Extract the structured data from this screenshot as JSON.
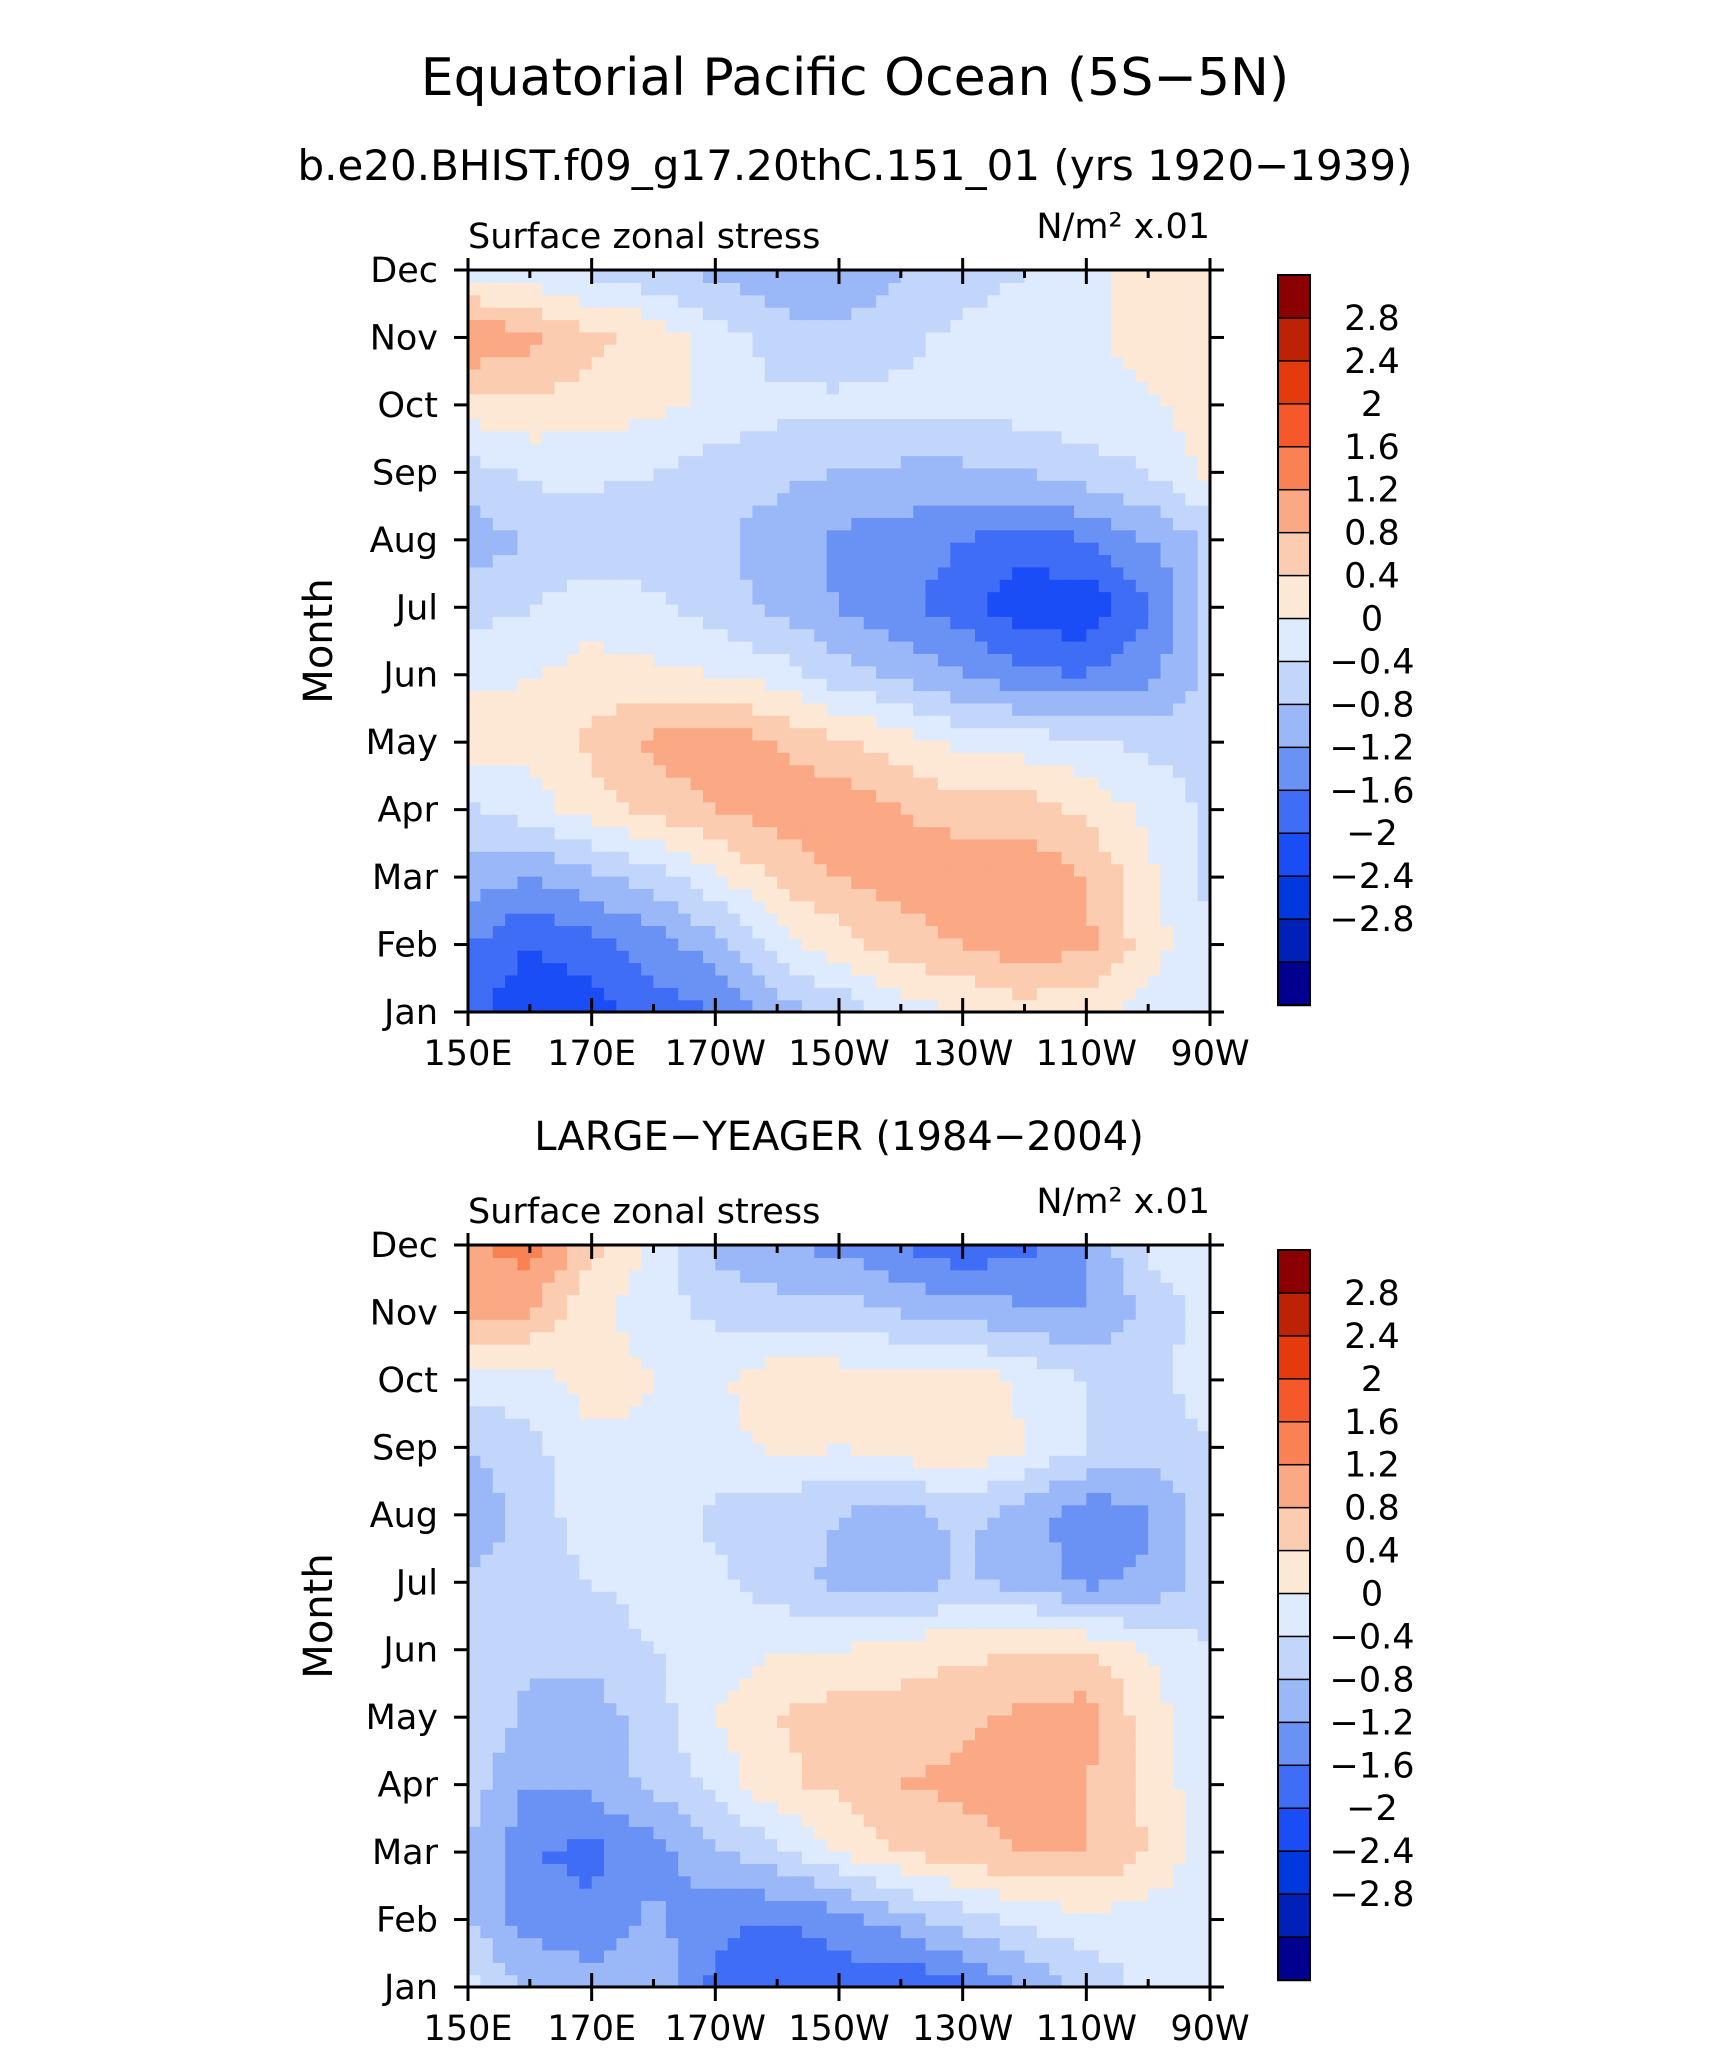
{
  "figure": {
    "title": "Equatorial Pacific Ocean (5S−5N)",
    "subtitle": "b.e20.BHIST.f09_g17.20thC.151_01 (yrs 1920−1939)"
  },
  "palette": {
    "levels": [
      -3.2,
      -2.8,
      -2.4,
      -2,
      -1.6,
      -1.2,
      -0.8,
      -0.4,
      0,
      0.4,
      0.8,
      1.2,
      1.6,
      2,
      2.4,
      2.8,
      3.2
    ],
    "colors": [
      "#02008f",
      "#0020b8",
      "#0038e0",
      "#1a4df5",
      "#3f6df5",
      "#6a92f5",
      "#9ab8f8",
      "#c2d6fb",
      "#deeafd",
      "#fde8d6",
      "#fcccb1",
      "#fba884",
      "#f98153",
      "#f5582b",
      "#e53a0e",
      "#bd2206",
      "#8b0000"
    ]
  },
  "chart_data": [
    {
      "type": "heatmap",
      "title": "",
      "left_label": "Surface zonal stress",
      "right_label": "N/m² x.01",
      "ylabel": "Month",
      "x_ticks": [
        "150E",
        "170E",
        "170W",
        "150W",
        "130W",
        "110W",
        "90W"
      ],
      "y_ticks": [
        "Jan",
        "Feb",
        "Mar",
        "Apr",
        "May",
        "Jun",
        "Jul",
        "Aug",
        "Sep",
        "Oct",
        "Nov",
        "Dec"
      ],
      "colorbar_labels": [
        "2.8",
        "2.4",
        "2",
        "1.6",
        "1.2",
        "0.8",
        "0.4",
        "0",
        "−0.4",
        "−0.8",
        "−1.2",
        "−1.6",
        "−2",
        "−2.4",
        "−2.8"
      ],
      "x": [
        150,
        160,
        170,
        180,
        190,
        200,
        210,
        220,
        230,
        240,
        250,
        260,
        270
      ],
      "months": [
        "Jan",
        "Feb",
        "Mar",
        "Apr",
        "May",
        "Jun",
        "Jul",
        "Aug",
        "Sep",
        "Oct",
        "Nov",
        "Dec"
      ],
      "values": [
        [
          -1.5,
          -1.9,
          -1.8,
          -1.4,
          -1.2,
          -0.6,
          -0.3,
          0.2,
          0.4,
          0.6,
          0.5,
          0.2,
          0.0
        ],
        [
          -1.2,
          -1.6,
          -1.4,
          -1.0,
          -0.6,
          0.2,
          0.6,
          1.0,
          1.2,
          1.4,
          1.3,
          0.6,
          0.0
        ],
        [
          -0.6,
          -0.8,
          -0.5,
          -0.2,
          0.3,
          0.9,
          1.2,
          1.4,
          1.5,
          1.5,
          1.2,
          0.5,
          -0.1
        ],
        [
          -0.1,
          0.2,
          0.6,
          0.9,
          1.2,
          1.4,
          1.5,
          1.2,
          1.0,
          1.0,
          0.7,
          0.3,
          -0.1
        ],
        [
          0.7,
          0.5,
          0.9,
          1.3,
          1.5,
          1.2,
          0.9,
          0.6,
          0.3,
          0.2,
          0.1,
          -0.1,
          -0.2
        ],
        [
          0.3,
          0.4,
          0.5,
          0.5,
          0.4,
          0.2,
          -0.2,
          -0.5,
          -0.8,
          -1.1,
          -1.2,
          -0.9,
          -0.3
        ],
        [
          -0.2,
          0.0,
          0.3,
          0.1,
          -0.2,
          -0.5,
          -0.8,
          -1.1,
          -1.4,
          -1.9,
          -1.9,
          -1.3,
          -0.3
        ],
        [
          -0.6,
          -0.4,
          -0.3,
          -0.3,
          -0.3,
          -0.6,
          -0.9,
          -1.0,
          -1.2,
          -1.4,
          -1.2,
          -0.8,
          -0.3
        ],
        [
          -0.2,
          0.1,
          0.1,
          0.0,
          -0.2,
          -0.3,
          -0.4,
          -0.5,
          -0.5,
          -0.4,
          -0.2,
          0.0,
          0.5
        ],
        [
          0.6,
          0.7,
          0.6,
          0.5,
          0.3,
          0.1,
          0.1,
          0.1,
          0.1,
          0.2,
          0.3,
          0.3,
          0.7
        ],
        [
          1.6,
          1.3,
          0.9,
          0.7,
          0.2,
          -0.2,
          -0.3,
          -0.1,
          0.1,
          0.2,
          0.3,
          0.6,
          0.8
        ],
        [
          0.2,
          0.1,
          -0.1,
          -0.3,
          -0.5,
          -0.7,
          -0.8,
          -0.4,
          -0.2,
          0.0,
          0.3,
          0.6,
          0.7
        ]
      ]
    },
    {
      "type": "heatmap",
      "title": "LARGE−YEAGER (1984−2004)",
      "left_label": "Surface zonal stress",
      "right_label": "N/m² x.01",
      "ylabel": "Month",
      "x_ticks": [
        "150E",
        "170E",
        "170W",
        "150W",
        "130W",
        "110W",
        "90W"
      ],
      "y_ticks": [
        "Jan",
        "Feb",
        "Mar",
        "Apr",
        "May",
        "Jun",
        "Jul",
        "Aug",
        "Sep",
        "Oct",
        "Nov",
        "Dec"
      ],
      "colorbar_labels": [
        "2.8",
        "2.4",
        "2",
        "1.6",
        "1.2",
        "0.8",
        "0.4",
        "0",
        "−0.4",
        "−0.8",
        "−1.2",
        "−1.6",
        "−2",
        "−2.4",
        "−2.8"
      ],
      "x": [
        150,
        160,
        170,
        180,
        190,
        200,
        210,
        220,
        230,
        240,
        250,
        260,
        270
      ],
      "months": [
        "Jan",
        "Feb",
        "Mar",
        "Apr",
        "May",
        "Jun",
        "Jul",
        "Aug",
        "Sep",
        "Oct",
        "Nov",
        "Dec"
      ],
      "values": [
        [
          0.1,
          -0.4,
          -0.6,
          -0.5,
          -1.3,
          -1.6,
          -1.4,
          -1.6,
          -1.3,
          -0.8,
          -0.3,
          0.1,
          0.2
        ],
        [
          -0.4,
          -1.0,
          -1.1,
          -0.7,
          -1.1,
          -1.2,
          -1.0,
          -0.6,
          -0.2,
          0.1,
          0.3,
          0.2,
          0.1
        ],
        [
          -0.4,
          -1.2,
          -1.3,
          -1.0,
          -0.5,
          -0.1,
          0.4,
          0.8,
          1.0,
          1.2,
          1.2,
          0.8,
          0.1
        ],
        [
          -0.2,
          -0.8,
          -0.7,
          -0.3,
          0.1,
          0.7,
          0.9,
          1.2,
          1.3,
          1.4,
          1.2,
          0.7,
          0.1
        ],
        [
          -0.1,
          -0.5,
          -0.6,
          -0.2,
          0.4,
          0.8,
          1.0,
          1.0,
          1.1,
          1.3,
          1.4,
          0.6,
          0.0
        ],
        [
          -0.1,
          -0.3,
          -0.3,
          0.0,
          0.2,
          0.4,
          0.4,
          0.6,
          0.7,
          0.8,
          0.8,
          0.4,
          0.0
        ],
        [
          -0.3,
          -0.2,
          0.0,
          0.2,
          0.1,
          -0.2,
          -0.5,
          -0.5,
          -0.4,
          -0.5,
          -0.9,
          -0.7,
          -0.2
        ],
        [
          -0.8,
          -0.2,
          0.2,
          0.3,
          -0.1,
          -0.3,
          -0.4,
          -0.6,
          -0.3,
          -0.6,
          -1.1,
          -0.9,
          -0.1
        ],
        [
          -0.4,
          -0.1,
          0.3,
          0.3,
          0.2,
          0.5,
          0.4,
          0.6,
          0.8,
          0.4,
          0.0,
          -0.2,
          -0.1
        ],
        [
          0.2,
          0.2,
          0.6,
          0.4,
          0.3,
          0.7,
          0.6,
          0.6,
          0.7,
          0.3,
          0.0,
          -0.2,
          0.3
        ],
        [
          1.3,
          1.2,
          0.5,
          0.2,
          -0.1,
          -0.2,
          -0.2,
          -0.4,
          -0.6,
          -0.7,
          -0.8,
          -0.3,
          0.2
        ],
        [
          1.5,
          1.8,
          0.9,
          0.3,
          -0.5,
          -0.8,
          -0.9,
          -1.2,
          -1.5,
          -1.3,
          -0.8,
          0.1,
          0.2
        ]
      ]
    }
  ]
}
